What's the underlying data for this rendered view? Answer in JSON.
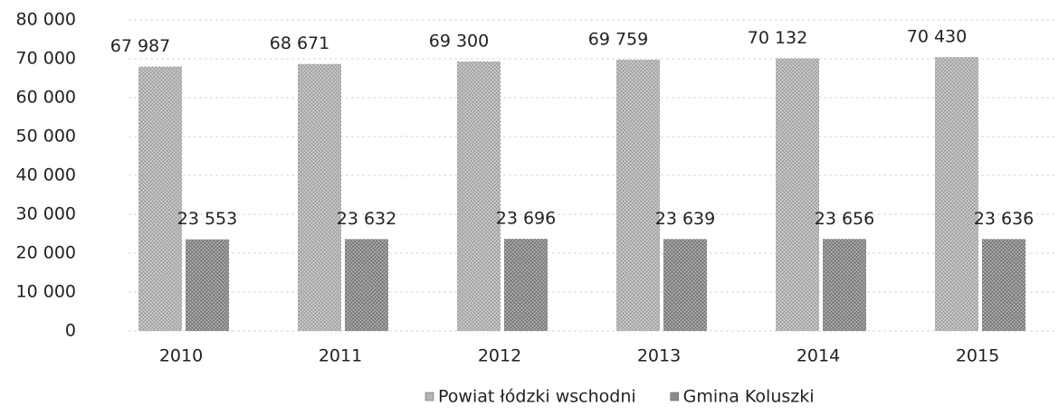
{
  "chart_data": {
    "type": "bar",
    "categories": [
      "2010",
      "2011",
      "2012",
      "2013",
      "2014",
      "2015"
    ],
    "series": [
      {
        "name": "Powiat łódzki wschodni",
        "color": "#b4b4b4",
        "values": [
          67987,
          68671,
          69300,
          69759,
          70132,
          70430
        ],
        "value_labels": [
          "67 987",
          "68 671",
          "69 300",
          "69 759",
          "70 132",
          "70 430"
        ]
      },
      {
        "name": "Gmina Koluszki",
        "color": "#8c8c8c",
        "values": [
          23553,
          23632,
          23696,
          23639,
          23656,
          23636
        ],
        "value_labels": [
          "23 553",
          "23 632",
          "23 696",
          "23 639",
          "23 656",
          "23 636"
        ]
      }
    ],
    "ylim": [
      0,
      80000
    ],
    "yticks": [
      0,
      {
        "value": 10000,
        "label": "10 000"
      },
      {
        "value": 20000,
        "label": "20 000"
      },
      {
        "value": 30000,
        "label": "30 000"
      },
      {
        "value": 40000,
        "label": "40 000"
      },
      {
        "value": 50000,
        "label": "50 000"
      },
      {
        "value": 60000,
        "label": "60 000"
      },
      {
        "value": 70000,
        "label": "70 000"
      },
      {
        "value": 80000,
        "label": "80 000"
      }
    ],
    "grid": true,
    "legend": "bottom"
  }
}
